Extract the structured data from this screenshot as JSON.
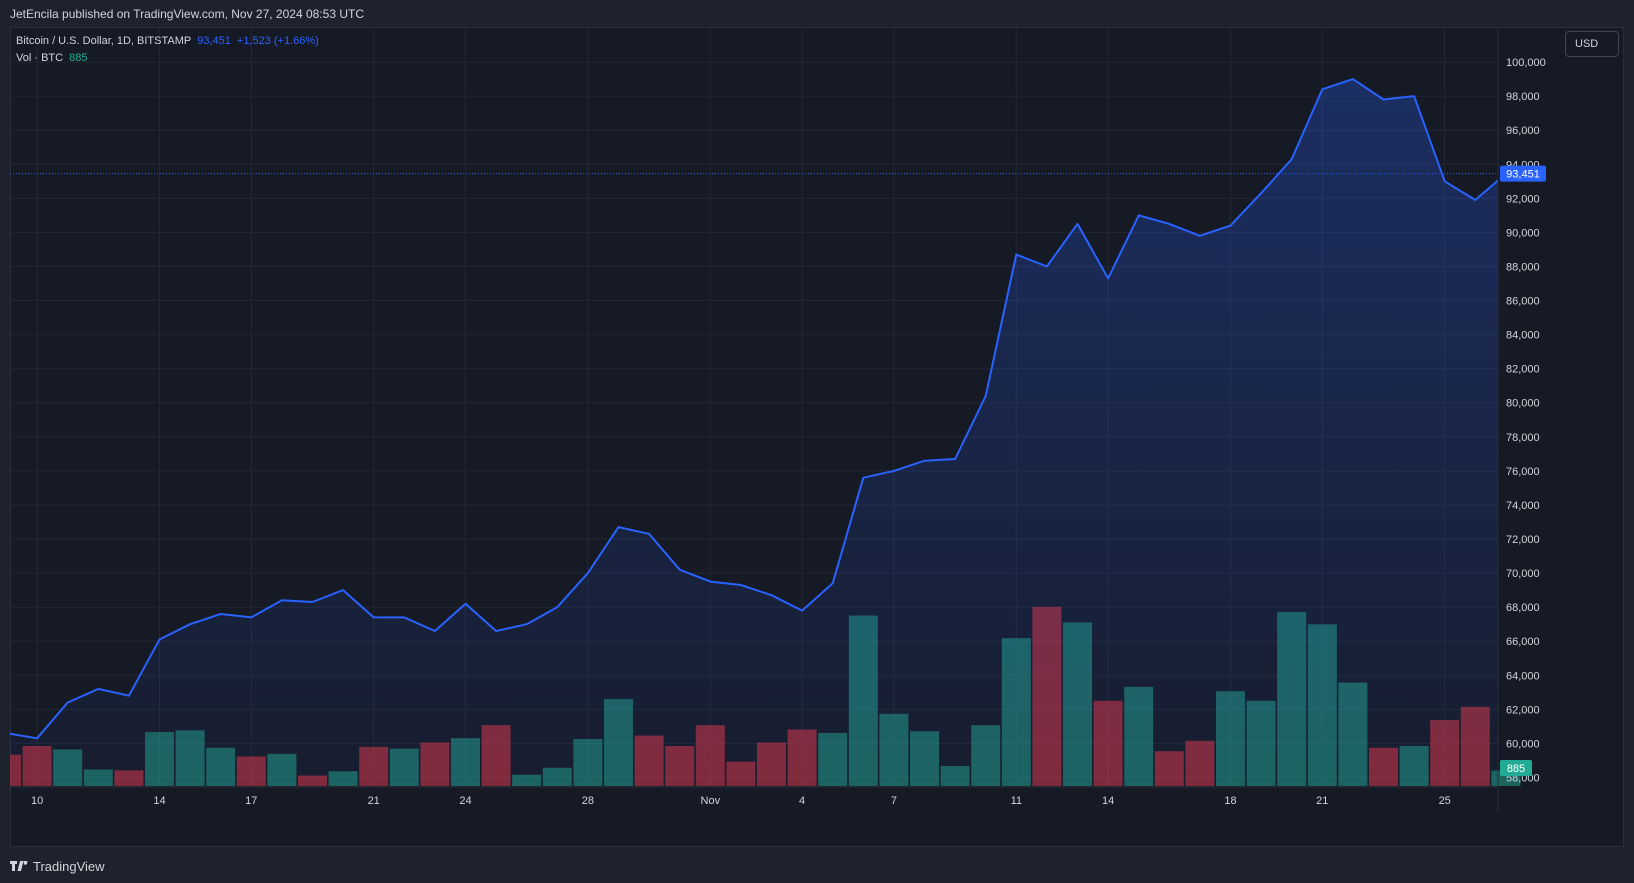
{
  "header": {
    "published": "JetEncila published on TradingView.com, Nov 27, 2024 08:53 UTC"
  },
  "legend": {
    "symbol": "Bitcoin / U.S. Dollar, 1D, BITSTAMP",
    "price": "93,451",
    "change": "+1,523 (+1.66%)",
    "vol_label": "Vol · BTC",
    "vol_value": "885"
  },
  "currency_button": "USD",
  "footer": {
    "brand": "TradingView"
  },
  "colors": {
    "line": "#2962ff",
    "up_volume": "#22ab94",
    "down_volume": "#f23645",
    "background": "#161a25",
    "grid": "#232733",
    "text": "#d1d4dc"
  },
  "chart_data": {
    "type": "area",
    "series": [
      {
        "name": "Bitcoin / U.S. Dollar",
        "values": [
          60600,
          60300,
          62400,
          63200,
          62800,
          66100,
          67000,
          67600,
          67400,
          68400,
          68300,
          69000,
          67400,
          67400,
          66600,
          68200,
          66600,
          67000,
          68000,
          70000,
          72700,
          72300,
          70200,
          69500,
          69300,
          68700,
          67800,
          69400,
          75600,
          76000,
          76600,
          76700,
          80400,
          88700,
          88000,
          90500,
          87300,
          91000,
          90500,
          89800,
          90400,
          92300,
          94300,
          98400,
          99000,
          97800,
          98000,
          93000,
          91900,
          93451
        ]
      },
      {
        "name": "Vol · BTC",
        "values": [
          1800,
          2300,
          2100,
          950,
          900,
          3100,
          3200,
          2200,
          1700,
          1850,
          600,
          850,
          2250,
          2150,
          2500,
          2750,
          3500,
          650,
          1050,
          2700,
          5000,
          2900,
          2300,
          3500,
          1400,
          2500,
          3250,
          3050,
          9800,
          4150,
          3150,
          1150,
          3500,
          8500,
          10300,
          9400,
          4900,
          5700,
          2000,
          2600,
          5450,
          4900,
          10000,
          9300,
          5950,
          2200,
          2300,
          3800,
          4550,
          885
        ],
        "direction": [
          "down",
          "down",
          "up",
          "up",
          "down",
          "up",
          "up",
          "up",
          "down",
          "up",
          "down",
          "up",
          "down",
          "up",
          "down",
          "up",
          "down",
          "up",
          "up",
          "up",
          "up",
          "down",
          "down",
          "down",
          "down",
          "down",
          "down",
          "up",
          "up",
          "up",
          "up",
          "up",
          "up",
          "up",
          "down",
          "up",
          "down",
          "up",
          "down",
          "down",
          "up",
          "up",
          "up",
          "up",
          "up",
          "down",
          "up",
          "down",
          "down",
          "up"
        ]
      }
    ],
    "last_price_label": "93,451",
    "last_volume_label": "885",
    "x_tick_labels": [
      {
        "index": 1,
        "label": "10"
      },
      {
        "index": 5,
        "label": "14"
      },
      {
        "index": 8,
        "label": "17"
      },
      {
        "index": 12,
        "label": "21"
      },
      {
        "index": 15,
        "label": "24"
      },
      {
        "index": 19,
        "label": "28"
      },
      {
        "index": 23,
        "label": "Nov"
      },
      {
        "index": 26,
        "label": "4"
      },
      {
        "index": 29,
        "label": "7"
      },
      {
        "index": 33,
        "label": "11"
      },
      {
        "index": 36,
        "label": "14"
      },
      {
        "index": 40,
        "label": "18"
      },
      {
        "index": 43,
        "label": "21"
      },
      {
        "index": 47,
        "label": "25"
      }
    ],
    "y_ticks": [
      {
        "value": 58000,
        "label": "58,000"
      },
      {
        "value": 60000,
        "label": "60,000"
      },
      {
        "value": 62000,
        "label": "62,000"
      },
      {
        "value": 64000,
        "label": "64,000"
      },
      {
        "value": 66000,
        "label": "66,000"
      },
      {
        "value": 68000,
        "label": "68,000"
      },
      {
        "value": 70000,
        "label": "70,000"
      },
      {
        "value": 72000,
        "label": "72,000"
      },
      {
        "value": 74000,
        "label": "74,000"
      },
      {
        "value": 76000,
        "label": "76,000"
      },
      {
        "value": 78000,
        "label": "78,000"
      },
      {
        "value": 80000,
        "label": "80,000"
      },
      {
        "value": 82000,
        "label": "82,000"
      },
      {
        "value": 84000,
        "label": "84,000"
      },
      {
        "value": 86000,
        "label": "86,000"
      },
      {
        "value": 88000,
        "label": "88,000"
      },
      {
        "value": 90000,
        "label": "90,000"
      },
      {
        "value": 92000,
        "label": "92,000"
      },
      {
        "value": 94000,
        "label": "94,000"
      },
      {
        "value": 96000,
        "label": "96,000"
      },
      {
        "value": 98000,
        "label": "98,000"
      },
      {
        "value": 100000,
        "label": "100,000"
      }
    ],
    "ylim": [
      57500,
      102000
    ],
    "volume_max": 11500,
    "grid": true,
    "legend_position": "top-left"
  }
}
